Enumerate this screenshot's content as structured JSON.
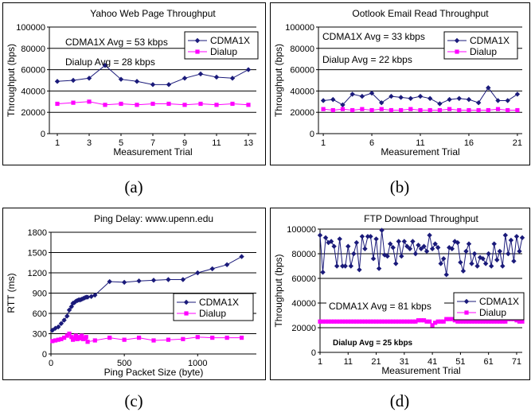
{
  "captions": {
    "a": "(a)",
    "b": "(b)",
    "c": "(c)",
    "d": "(d)"
  },
  "chart_data": [
    {
      "id": "a",
      "type": "line",
      "title": "Yahoo Web Page Throughput",
      "xlabel": "Measurement Trial",
      "ylabel": "Throughput (bps)",
      "xlim": [
        0.5,
        13.5
      ],
      "ylim": [
        0,
        100000
      ],
      "xticks": [
        1,
        3,
        5,
        7,
        9,
        11,
        13
      ],
      "yticks": [
        0,
        20000,
        40000,
        60000,
        80000,
        100000
      ],
      "ygrid": true,
      "legend": "top-right",
      "annotations": [
        "CDMA1X Avg = 53 kbps",
        "Dialup Avg =  28 kbps"
      ],
      "series": [
        {
          "name": "CDMA1X",
          "color": "#1a1a7a",
          "marker": "diamond",
          "x": [
            1,
            2,
            3,
            4,
            5,
            6,
            7,
            8,
            9,
            10,
            11,
            12,
            13
          ],
          "values": [
            49000,
            50000,
            52000,
            64000,
            51000,
            49000,
            46000,
            46000,
            52000,
            56000,
            53000,
            52000,
            60000
          ]
        },
        {
          "name": "Dialup",
          "color": "#ff00ff",
          "marker": "square",
          "x": [
            1,
            2,
            3,
            4,
            5,
            6,
            7,
            8,
            9,
            10,
            11,
            12,
            13
          ],
          "values": [
            28000,
            29000,
            30000,
            27000,
            28000,
            27000,
            28000,
            28000,
            27000,
            28000,
            27000,
            28000,
            27000
          ]
        }
      ]
    },
    {
      "id": "b",
      "type": "line",
      "title": "Ootlook Email Read Throughput",
      "xlabel": "Measurement Trial",
      "ylabel": "Throughput (bps)",
      "xlim": [
        0.5,
        21.5
      ],
      "ylim": [
        0,
        100000
      ],
      "xticks": [
        1,
        6,
        11,
        16,
        21
      ],
      "yticks": [
        0,
        20000,
        40000,
        60000,
        80000,
        100000
      ],
      "ygrid": true,
      "legend": "top-right",
      "annotations": [
        "CDMA1X Avg = 33 kbps",
        "Dialup Avg =  22 kbps"
      ],
      "series": [
        {
          "name": "CDMA1X",
          "color": "#1a1a7a",
          "marker": "diamond",
          "x": [
            1,
            2,
            3,
            4,
            5,
            6,
            7,
            8,
            9,
            10,
            11,
            12,
            13,
            14,
            15,
            16,
            17,
            18,
            19,
            20,
            21
          ],
          "values": [
            31000,
            32000,
            27000,
            37000,
            35000,
            38000,
            29000,
            35000,
            34000,
            33000,
            35000,
            33000,
            28000,
            32000,
            33000,
            32000,
            29000,
            43000,
            31000,
            31000,
            37000
          ]
        },
        {
          "name": "Dialup",
          "color": "#ff00ff",
          "marker": "square",
          "x": [
            1,
            2,
            3,
            4,
            5,
            6,
            7,
            8,
            9,
            10,
            11,
            12,
            13,
            14,
            15,
            16,
            17,
            18,
            19,
            20,
            21
          ],
          "values": [
            23000,
            22000,
            23000,
            22000,
            23000,
            22000,
            23000,
            22000,
            22000,
            23000,
            22000,
            22000,
            22000,
            23000,
            22000,
            22000,
            22000,
            22000,
            23000,
            22000,
            22000
          ]
        }
      ]
    },
    {
      "id": "c",
      "type": "line",
      "title": "Ping Delay: www.upenn.edu",
      "xlabel": "Ping Packet Size (byte)",
      "ylabel": "RTT (ms)",
      "xlim": [
        0,
        1400
      ],
      "ylim": [
        0,
        1800
      ],
      "xticks": [
        0,
        500,
        1000
      ],
      "yticks": [
        0,
        300,
        600,
        900,
        1200,
        1500,
        1800
      ],
      "ygrid": true,
      "legend": "right",
      "annotations": [],
      "series": [
        {
          "name": "CDMA1X",
          "color": "#1a1a7a",
          "marker": "diamond",
          "x": [
            10,
            30,
            50,
            70,
            90,
            110,
            125,
            140,
            150,
            160,
            170,
            180,
            190,
            200,
            210,
            220,
            230,
            240,
            250,
            275,
            300,
            400,
            500,
            600,
            700,
            800,
            900,
            1000,
            1100,
            1200,
            1300
          ],
          "values": [
            350,
            380,
            400,
            450,
            500,
            560,
            650,
            700,
            750,
            760,
            780,
            790,
            800,
            800,
            810,
            820,
            830,
            840,
            840,
            850,
            870,
            1070,
            1060,
            1080,
            1090,
            1100,
            1100,
            1200,
            1260,
            1320,
            1440
          ]
        },
        {
          "name": "Dialup",
          "color": "#ff00ff",
          "marker": "square",
          "x": [
            10,
            30,
            50,
            70,
            90,
            110,
            125,
            140,
            150,
            160,
            170,
            180,
            190,
            200,
            210,
            220,
            230,
            240,
            250,
            300,
            400,
            500,
            600,
            700,
            800,
            900,
            1000,
            1100,
            1200,
            1300
          ],
          "values": [
            190,
            200,
            210,
            220,
            240,
            270,
            300,
            250,
            210,
            230,
            270,
            220,
            250,
            230,
            270,
            220,
            230,
            250,
            180,
            200,
            240,
            210,
            240,
            200,
            210,
            220,
            250,
            240,
            240,
            240
          ]
        }
      ]
    },
    {
      "id": "d",
      "type": "line",
      "title": "FTP Download Throughput",
      "xlabel": "Measurement Trial",
      "ylabel": "Throughput (bps)",
      "xlim": [
        1,
        73
      ],
      "ylim": [
        0,
        100000
      ],
      "xticks": [
        1,
        11,
        21,
        31,
        41,
        51,
        61,
        71
      ],
      "yticks": [
        0,
        20000,
        40000,
        60000,
        80000,
        100000
      ],
      "ygrid": true,
      "legend": "right",
      "annotations": [
        "CDMA1X Avg = 81 kbps",
        "Dialup Avg = 25 kbps"
      ],
      "series": [
        {
          "name": "CDMA1X",
          "color": "#1a1a7a",
          "marker": "diamond",
          "x": [
            1,
            2,
            3,
            4,
            5,
            6,
            7,
            8,
            9,
            10,
            11,
            12,
            13,
            14,
            15,
            16,
            17,
            18,
            19,
            20,
            21,
            22,
            23,
            24,
            25,
            26,
            27,
            28,
            29,
            30,
            31,
            32,
            33,
            34,
            35,
            36,
            37,
            38,
            39,
            40,
            41,
            42,
            43,
            44,
            45,
            46,
            47,
            48,
            49,
            50,
            51,
            52,
            53,
            54,
            55,
            56,
            57,
            58,
            59,
            60,
            61,
            62,
            63,
            64,
            65,
            66,
            67,
            68,
            69,
            70,
            71,
            72,
            73
          ],
          "values": [
            95000,
            65000,
            93000,
            89000,
            90000,
            86000,
            70000,
            92000,
            70000,
            70000,
            86000,
            70000,
            80000,
            89000,
            67000,
            94000,
            84000,
            94000,
            94000,
            76000,
            92000,
            68000,
            99000,
            79000,
            78000,
            88000,
            85000,
            72000,
            90000,
            78000,
            90000,
            86000,
            84000,
            90000,
            80000,
            87000,
            84000,
            86000,
            82000,
            95000,
            84000,
            88000,
            85000,
            72000,
            76000,
            63000,
            85000,
            84000,
            90000,
            89000,
            73000,
            66000,
            82000,
            88000,
            72000,
            80000,
            70000,
            77000,
            76000,
            72000,
            80000,
            70000,
            88000,
            75000,
            82000,
            70000,
            95000,
            80000,
            91000,
            74000,
            94000,
            82000,
            93000
          ]
        },
        {
          "name": "Dialup",
          "color": "#ff00ff",
          "marker": "square",
          "x": [
            1,
            2,
            3,
            4,
            5,
            6,
            7,
            8,
            9,
            10,
            11,
            12,
            13,
            14,
            15,
            16,
            17,
            18,
            19,
            20,
            21,
            22,
            23,
            24,
            25,
            26,
            27,
            28,
            29,
            30,
            31,
            32,
            33,
            34,
            35,
            36,
            37,
            38,
            39,
            40,
            41,
            42,
            43,
            44,
            45,
            46,
            47,
            48,
            49,
            50,
            51,
            52,
            53,
            54,
            55,
            56,
            57,
            58,
            59,
            60,
            61,
            62,
            63,
            64,
            65,
            66,
            67,
            68,
            69,
            70,
            71,
            72,
            73
          ],
          "values": [
            25000,
            25000,
            25000,
            25000,
            25000,
            25000,
            25000,
            25000,
            25000,
            25000,
            25000,
            25000,
            25000,
            25000,
            25000,
            25000,
            25000,
            25000,
            25000,
            25000,
            25000,
            25000,
            25000,
            25000,
            25000,
            25000,
            25000,
            25000,
            25000,
            25000,
            25000,
            25000,
            25000,
            25000,
            25000,
            26000,
            26000,
            26000,
            25000,
            25000,
            22000,
            24000,
            25000,
            25000,
            25000,
            27000,
            27000,
            27000,
            26000,
            25000,
            25000,
            25000,
            25000,
            25000,
            25000,
            25000,
            25000,
            25000,
            25000,
            25000,
            25000,
            25000,
            25000,
            25000,
            25000,
            25000,
            25000,
            27000,
            27000,
            27000,
            26000,
            25000,
            25000
          ]
        }
      ]
    }
  ]
}
